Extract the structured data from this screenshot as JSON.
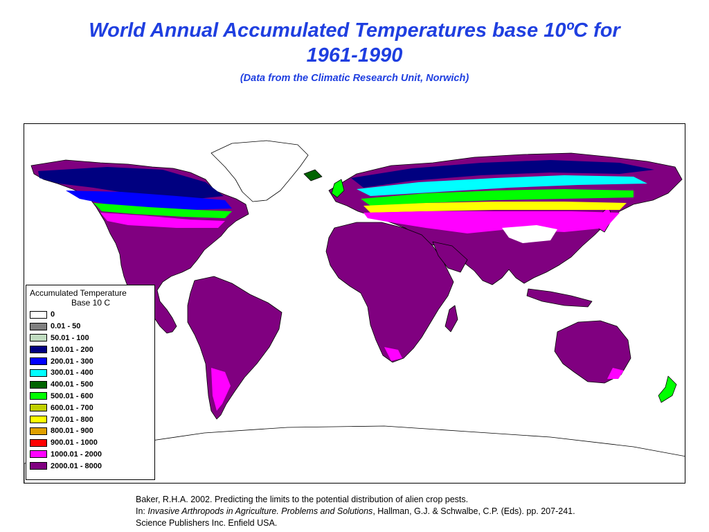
{
  "title_line1": "World Annual Accumulated Temperatures base 10ºC for",
  "title_line2": "1961-1990",
  "subtitle": "(Data from the Climatic Research Unit, Norwich)",
  "legend": {
    "title_line1": "Accumulated Temperature",
    "title_line2": "Base 10 C",
    "items": [
      {
        "label": "0",
        "color": "#ffffff"
      },
      {
        "label": "0.01 - 50",
        "color": "#808080"
      },
      {
        "label": "50.01 - 100",
        "color": "#c0dcc0"
      },
      {
        "label": "100.01 - 200",
        "color": "#000080"
      },
      {
        "label": "200.01 - 300",
        "color": "#0000ff"
      },
      {
        "label": "300.01 - 400",
        "color": "#00ffff"
      },
      {
        "label": "400.01 - 500",
        "color": "#006400"
      },
      {
        "label": "500.01 - 600",
        "color": "#00ff00"
      },
      {
        "label": "600.01 - 700",
        "color": "#c0d000"
      },
      {
        "label": "700.01 - 800",
        "color": "#ffff00"
      },
      {
        "label": "800.01 - 900",
        "color": "#e0a000"
      },
      {
        "label": "900.01 - 1000",
        "color": "#ff0000"
      },
      {
        "label": "1000.01 - 2000",
        "color": "#ff00ff"
      },
      {
        "label": "2000.01 - 8000",
        "color": "#800080"
      }
    ]
  },
  "citation": {
    "line1": "Baker, R.H.A. 2002. Predicting the limits to the potential distribution of alien crop pests.",
    "line2_prefix": "In: ",
    "line2_italic": "Invasive Arthropods in Agriculture. Problems and Solutions",
    "line2_suffix": ", Hallman, G.J. & Schwalbe, C.P. (Eds). pp. 207-241.",
    "line3": "Science Publishers Inc. Enfield USA."
  }
}
